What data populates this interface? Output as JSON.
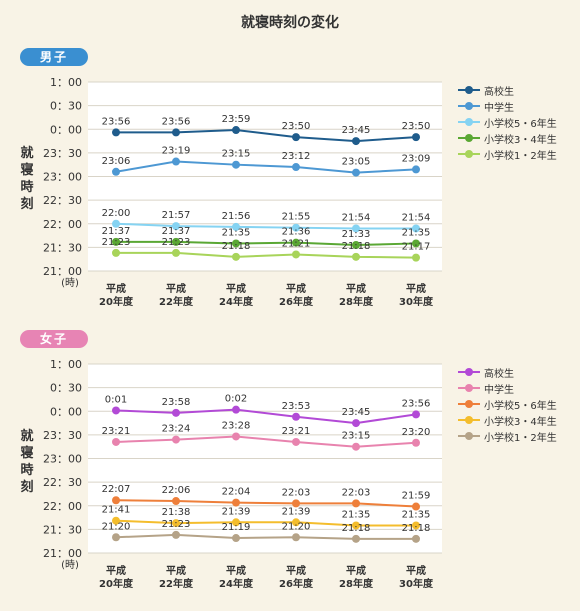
{
  "title": "就寝時刻の変化",
  "y_axis_label": "就寝時刻",
  "y_unit": "(時)",
  "y_ticks": [
    "1：00",
    "0：30",
    "0：00",
    "23：30",
    "23：00",
    "22：30",
    "22：00",
    "21：30",
    "21：00"
  ],
  "x_categories": [
    "平成\n20年度",
    "平成\n22年度",
    "平成\n24年度",
    "平成\n26年度",
    "平成\n28年度",
    "平成\n30年度"
  ],
  "chart_data": [
    {
      "type": "line",
      "panel_label": "男子",
      "badge_color": "#3a8fd1",
      "ylabel": "就寝時刻",
      "y_unit": "(時)",
      "ylim": [
        "21:00",
        "1:00"
      ],
      "grid": true,
      "legend_position": "right",
      "categories": [
        "平成20年度",
        "平成22年度",
        "平成24年度",
        "平成26年度",
        "平成28年度",
        "平成30年度"
      ],
      "series": [
        {
          "name": "高校生",
          "color": "#1f5c8c",
          "values": [
            "23:56",
            "23:56",
            "23:59",
            "23:50",
            "23:45",
            "23:50"
          ]
        },
        {
          "name": "中学生",
          "color": "#4d98d3",
          "values": [
            "23:06",
            "23:19",
            "23:15",
            "23:12",
            "23:05",
            "23:09"
          ]
        },
        {
          "name": "小学校5・6年生",
          "color": "#85d3f2",
          "values": [
            "22:00",
            "21:57",
            "21:56",
            "21:55",
            "21:54",
            "21:54"
          ]
        },
        {
          "name": "小学校3・4年生",
          "color": "#5aa733",
          "values": [
            "21:37",
            "21:37",
            "21:35",
            "21:36",
            "21:33",
            "21:35"
          ]
        },
        {
          "name": "小学校1・2年生",
          "color": "#a8d45a",
          "values": [
            "21:23",
            "21:23",
            "21:18",
            "21:21",
            "21:18",
            "21:17"
          ]
        }
      ]
    },
    {
      "type": "line",
      "panel_label": "女子",
      "badge_color": "#e784b4",
      "ylabel": "就寝時刻",
      "y_unit": "(時)",
      "ylim": [
        "21:00",
        "1:00"
      ],
      "grid": true,
      "legend_position": "right",
      "categories": [
        "平成20年度",
        "平成22年度",
        "平成24年度",
        "平成26年度",
        "平成28年度",
        "平成30年度"
      ],
      "series": [
        {
          "name": "高校生",
          "color": "#b24ad6",
          "values": [
            "0:01",
            "23:58",
            "0:02",
            "23:53",
            "23:45",
            "23:56"
          ]
        },
        {
          "name": "中学生",
          "color": "#e883ae",
          "values": [
            "23:21",
            "23:24",
            "23:28",
            "23:21",
            "23:15",
            "23:20"
          ]
        },
        {
          "name": "小学校5・6年生",
          "color": "#ee7f3a",
          "values": [
            "22:07",
            "22:06",
            "22:04",
            "22:03",
            "22:03",
            "21:59"
          ]
        },
        {
          "name": "小学校3・4年生",
          "color": "#f4bd2c",
          "values": [
            "21:41",
            "21:38",
            "21:39",
            "21:39",
            "21:35",
            "21:35"
          ]
        },
        {
          "name": "小学校1・2年生",
          "color": "#b5a388",
          "values": [
            "21:20",
            "21:23",
            "21:19",
            "21:20",
            "21:18",
            "21:18"
          ]
        }
      ]
    }
  ]
}
